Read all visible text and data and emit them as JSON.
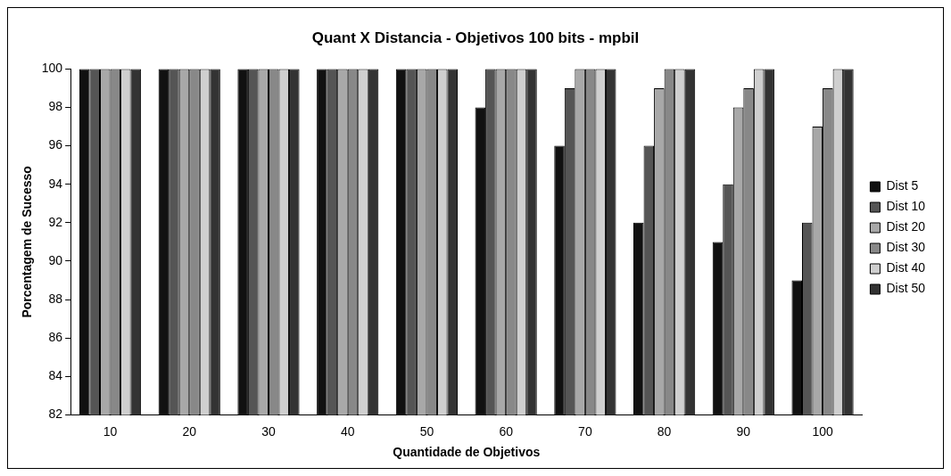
{
  "chart_data": {
    "type": "bar",
    "title": "Quant X Distancia - Objetivos 100 bits - mpbil",
    "xlabel": "Quantidade de Objetivos",
    "ylabel": "Porcentagem de Sucesso",
    "categories": [
      "10",
      "20",
      "30",
      "40",
      "50",
      "60",
      "70",
      "80",
      "90",
      "100"
    ],
    "series": [
      {
        "name": "Dist 5",
        "color": "#111111",
        "values": [
          100,
          100,
          100,
          100,
          100,
          98,
          96,
          92,
          91,
          89
        ]
      },
      {
        "name": "Dist 10",
        "color": "#555555",
        "values": [
          100,
          100,
          100,
          100,
          100,
          100,
          99,
          96,
          94,
          92
        ]
      },
      {
        "name": "Dist 20",
        "color": "#a8a8a8",
        "values": [
          100,
          100,
          100,
          100,
          100,
          100,
          100,
          99,
          98,
          97
        ]
      },
      {
        "name": "Dist 30",
        "color": "#888888",
        "values": [
          100,
          100,
          100,
          100,
          100,
          100,
          100,
          100,
          99,
          99
        ]
      },
      {
        "name": "Dist 40",
        "color": "#cfcfcf",
        "values": [
          100,
          100,
          100,
          100,
          100,
          100,
          100,
          100,
          100,
          100
        ]
      },
      {
        "name": "Dist 50",
        "color": "#333333",
        "values": [
          100,
          100,
          100,
          100,
          100,
          100,
          100,
          100,
          100,
          100
        ]
      }
    ],
    "ylim": [
      82,
      100
    ],
    "yticks": [
      82,
      84,
      86,
      88,
      90,
      92,
      94,
      96,
      98,
      100
    ],
    "grid": false,
    "legend": "right"
  }
}
